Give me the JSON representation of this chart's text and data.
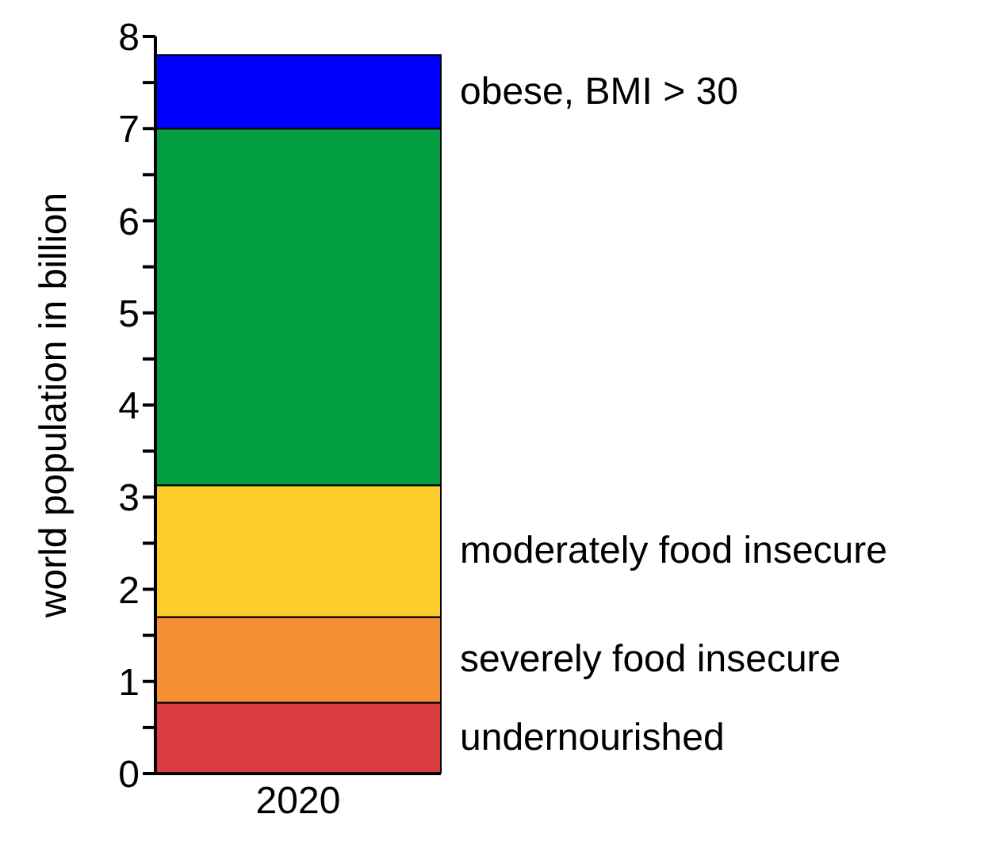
{
  "chart_data": {
    "type": "bar",
    "stacked": true,
    "ylabel": "world population in billion",
    "categories": [
      "2020"
    ],
    "series": [
      {
        "name": "undernourished",
        "color": "#dc3d43",
        "values": [
          0.77
        ]
      },
      {
        "name": "severely food insecure",
        "color": "#f68e35",
        "values": [
          0.93
        ]
      },
      {
        "name": "moderately food insecure",
        "color": "#fbcd2a",
        "values": [
          1.43
        ]
      },
      {
        "color": "#039e42",
        "values": [
          3.87
        ]
      },
      {
        "name": "obese, BMI > 30",
        "color": "#0000fe",
        "values": [
          0.8
        ]
      }
    ],
    "ylim": [
      0,
      8
    ],
    "yticks": [
      0,
      {
        "value": 0.5,
        "label": null
      },
      1,
      {
        "value": 1.5,
        "label": null
      },
      2,
      {
        "value": 2.5,
        "label": null
      },
      3,
      {
        "value": 3.5,
        "label": null
      },
      4,
      {
        "value": 4.5,
        "label": null
      },
      5,
      {
        "value": 5.5,
        "label": null
      },
      6,
      {
        "value": 6.5,
        "label": null
      },
      7,
      {
        "value": 7.5,
        "label": null
      },
      8
    ],
    "grid": false,
    "legend": false
  }
}
